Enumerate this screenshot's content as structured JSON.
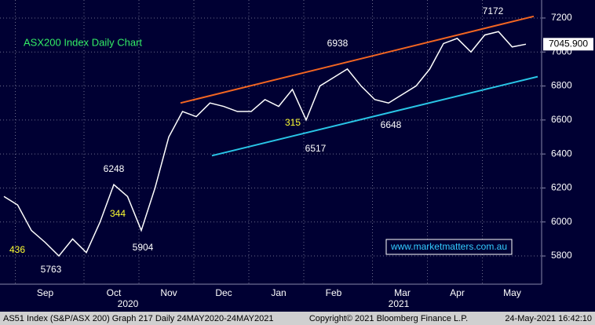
{
  "chart_data": {
    "type": "line",
    "title": "ASX200 Index Daily Chart",
    "watermark": "www.marketmatters.com.au",
    "categories": [
      null,
      null,
      null,
      "Sep",
      null,
      null,
      null,
      null,
      "Oct",
      null,
      null,
      null,
      "Nov",
      null,
      null,
      null,
      "Dec",
      null,
      null,
      null,
      "Jan",
      null,
      null,
      null,
      "Feb",
      null,
      null,
      null,
      null,
      "Mar",
      null,
      null,
      null,
      "Apr",
      null,
      null,
      null,
      "May",
      null
    ],
    "years": [
      "2020",
      "2021"
    ],
    "values": [
      6150,
      6100,
      5950,
      5880,
      5800,
      5900,
      5820,
      6000,
      6220,
      6150,
      5950,
      6200,
      6500,
      6650,
      6620,
      6700,
      6680,
      6650,
      6650,
      6720,
      6680,
      6780,
      6600,
      6800,
      6850,
      6900,
      6800,
      6720,
      6700,
      6750,
      6800,
      6900,
      7050,
      7080,
      7000,
      7100,
      7120,
      7030,
      7045.9
    ],
    "color": "#ffffff",
    "ylim": [
      5634,
      7306
    ],
    "yticks": [
      5800,
      6000,
      6200,
      6400,
      6600,
      6800,
      7000,
      7200
    ],
    "grid": true,
    "last_value": 7045.9,
    "last_label": "7045.900",
    "annotations": [
      7172,
      6938,
      6517,
      6648,
      6248,
      5904,
      5763
    ],
    "notes": [
      436,
      344,
      315
    ],
    "note_color": "#ffff33",
    "trendlines": [
      {
        "color": "#f26522",
        "values": [
          6700,
          7210
        ]
      },
      {
        "color": "#29c5e6",
        "values": [
          6390,
          6855
        ]
      }
    ],
    "footer_left": "AS51 Index (S&P/ASX 200) Graph 217  Daily 24MAY2020-24MAY2021",
    "footer_center": "Copyright© 2021 Bloomberg Finance L.P.",
    "footer_right": "24-May-2021 16:42:10"
  }
}
